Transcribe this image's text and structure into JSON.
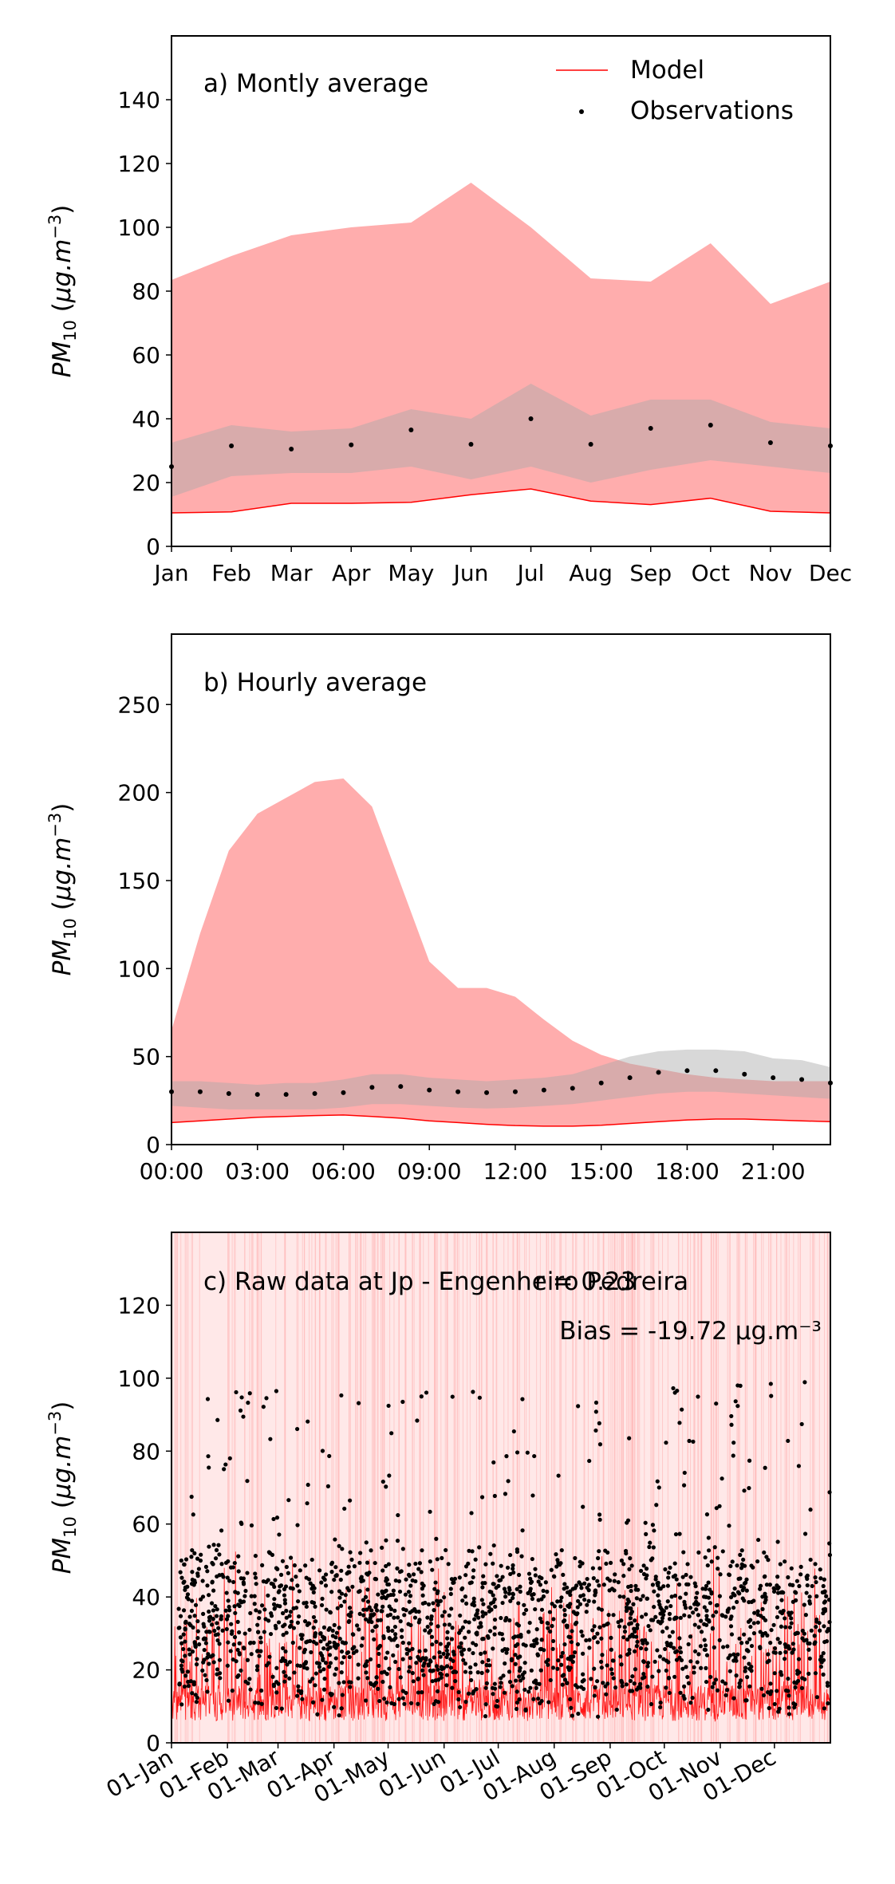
{
  "colors": {
    "model": "#ff0000",
    "model_band": "#ffadad",
    "obs": "#000000",
    "obs_band": "#a9a9a9"
  },
  "chart_data": [
    {
      "panel_id": "a",
      "type": "line",
      "title": "a) Montly average",
      "ylabel": "PM10 (μg.m⁻³)",
      "xlabel": "",
      "ylim": [
        0,
        160
      ],
      "yticks": [
        0,
        20,
        40,
        60,
        80,
        100,
        120,
        140
      ],
      "categories": [
        "Jan",
        "Feb",
        "Mar",
        "Apr",
        "May",
        "Jun",
        "Jul",
        "Aug",
        "Sep",
        "Oct",
        "Nov",
        "Dec"
      ],
      "grid": false,
      "legend": {
        "position": "top-right",
        "entries": [
          "Model",
          "Observations"
        ]
      },
      "series": [
        {
          "name": "Model",
          "style": "line",
          "values": [
            10.5,
            10.8,
            13.5,
            13.5,
            13.8,
            16.2,
            18.0,
            14.2,
            13.1,
            15.1,
            11.0,
            10.5
          ]
        },
        {
          "name": "Model range",
          "style": "band",
          "low": [
            10.5,
            10.8,
            13.5,
            13.5,
            13.8,
            16.2,
            18.0,
            14.2,
            13.1,
            15.1,
            11.0,
            10.5
          ],
          "high": [
            83.5,
            91.0,
            97.5,
            100.0,
            101.5,
            114.0,
            100.0,
            84.0,
            83.0,
            95.0,
            76.0,
            83.0
          ]
        },
        {
          "name": "Observations",
          "style": "points",
          "values": [
            25.0,
            31.5,
            30.5,
            31.8,
            36.5,
            32.0,
            40.0,
            32.0,
            37.0,
            38.0,
            32.5,
            31.5
          ]
        },
        {
          "name": "Observations range",
          "style": "band",
          "low": [
            15.5,
            22.0,
            23.0,
            23.0,
            25.0,
            21.0,
            25.0,
            20.0,
            24.0,
            27.0,
            25.0,
            23.0
          ],
          "high": [
            32.5,
            38.0,
            36.0,
            37.0,
            43.0,
            40.0,
            51.0,
            41.0,
            46.0,
            46.0,
            39.0,
            37.0
          ]
        }
      ]
    },
    {
      "panel_id": "b",
      "type": "line",
      "title": "b) Hourly average",
      "ylabel": "PM10 (μg.m⁻³)",
      "xlabel": "",
      "ylim": [
        0,
        290
      ],
      "yticks": [
        0,
        50,
        100,
        150,
        200,
        250
      ],
      "x": [
        0,
        1,
        2,
        3,
        4,
        5,
        6,
        7,
        8,
        9,
        10,
        11,
        12,
        13,
        14,
        15,
        16,
        17,
        18,
        19,
        20,
        21,
        22,
        23
      ],
      "xlim": [
        0,
        23
      ],
      "xticks": [
        0,
        3,
        6,
        9,
        12,
        15,
        18,
        21
      ],
      "xtick_labels": [
        "00:00",
        "03:00",
        "06:00",
        "09:00",
        "12:00",
        "15:00",
        "18:00",
        "21:00"
      ],
      "grid": false,
      "series": [
        {
          "name": "Model",
          "style": "line",
          "values": [
            12.5,
            13.5,
            14.5,
            15.5,
            16.0,
            16.5,
            16.8,
            16.0,
            15.0,
            13.5,
            12.5,
            11.5,
            10.8,
            10.5,
            10.5,
            11.0,
            12.0,
            13.0,
            14.0,
            14.5,
            14.5,
            14.0,
            13.5,
            13.0
          ]
        },
        {
          "name": "Model range",
          "style": "band",
          "low": [
            12.5,
            13.5,
            14.5,
            15.5,
            16.0,
            16.5,
            16.8,
            16.0,
            15.0,
            13.5,
            12.5,
            11.5,
            10.8,
            10.5,
            10.5,
            11.0,
            12.0,
            13.0,
            14.0,
            14.5,
            14.5,
            14.0,
            13.5,
            13.0
          ],
          "high": [
            65.0,
            120.0,
            167.0,
            188.0,
            197.0,
            206.0,
            208.0,
            192.0,
            148.0,
            104.0,
            89.0,
            89.0,
            84.0,
            71.0,
            59.0,
            51.0,
            46.0,
            43.0,
            40.0,
            38.0,
            37.0,
            36.0,
            36.0,
            36.0
          ]
        },
        {
          "name": "Observations",
          "style": "points",
          "values": [
            30.0,
            30.0,
            29.0,
            28.5,
            28.5,
            29.0,
            29.5,
            32.5,
            33.0,
            31.0,
            30.0,
            29.5,
            30.0,
            31.0,
            32.0,
            35.0,
            38.0,
            41.0,
            42.0,
            42.0,
            40.0,
            38.0,
            37.0,
            35.0
          ]
        },
        {
          "name": "Observations range",
          "style": "band",
          "low": [
            22.0,
            21.0,
            20.0,
            20.0,
            20.0,
            20.0,
            21.0,
            23.0,
            23.0,
            22.0,
            21.0,
            20.5,
            21.0,
            22.0,
            23.0,
            25.0,
            27.0,
            29.0,
            30.0,
            30.0,
            29.0,
            28.0,
            27.0,
            26.0
          ],
          "high": [
            36.0,
            36.0,
            35.0,
            34.0,
            35.0,
            35.0,
            37.0,
            40.0,
            40.0,
            38.0,
            37.0,
            36.0,
            37.0,
            38.0,
            40.0,
            45.0,
            50.0,
            53.0,
            54.0,
            54.0,
            53.0,
            49.0,
            48.0,
            44.0
          ]
        }
      ]
    },
    {
      "panel_id": "c",
      "type": "line",
      "title": "c) Raw data at Jp - Engenheiro Pedreira",
      "stats": [
        "r = 0.23",
        "Bias = -19.72 μg.m⁻³"
      ],
      "ylabel": "PM10 (μg.m⁻³)",
      "xlabel": "",
      "ylim": [
        0,
        140
      ],
      "yticks": [
        0,
        20,
        40,
        60,
        80,
        100,
        120
      ],
      "xlim": [
        1,
        366
      ],
      "xticks": [
        1,
        32,
        60,
        91,
        121,
        152,
        182,
        213,
        244,
        274,
        305,
        335
      ],
      "xtick_labels": [
        "01-Jan",
        "01-Feb",
        "01-Mar",
        "01-Apr",
        "01-May",
        "01-Jun",
        "01-Jul",
        "01-Aug",
        "01-Sep",
        "01-Oct",
        "01-Nov",
        "01-Dec"
      ],
      "grid": false,
      "series": [
        {
          "name": "Model",
          "style": "line",
          "typical_range": [
            0,
            60
          ]
        },
        {
          "name": "Observations",
          "style": "points",
          "typical_range": [
            0,
            99
          ]
        }
      ]
    }
  ]
}
